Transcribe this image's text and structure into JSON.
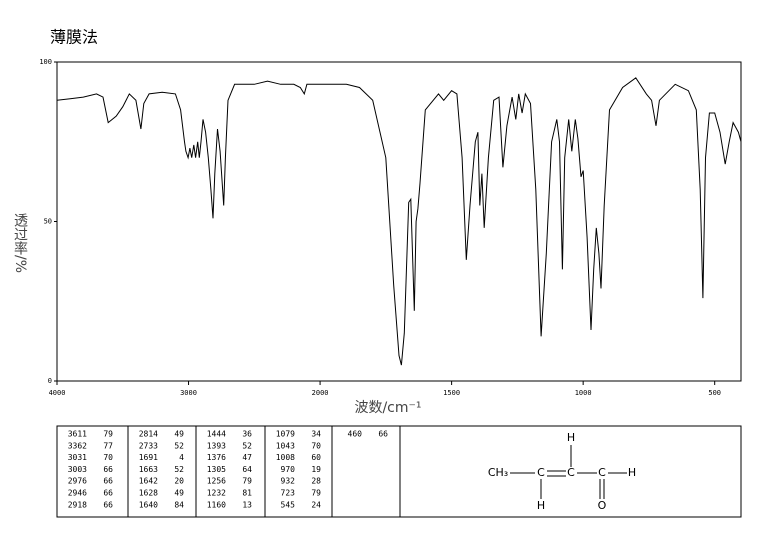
{
  "chart_data": {
    "type": "line",
    "title": "薄膜法",
    "x_label": "波数/cm⁻¹",
    "y_label": "透过率/%",
    "xlim": [
      4000,
      400
    ],
    "xbreak": 2000,
    "xticks": [
      4000,
      3000,
      2000,
      1500,
      1000,
      500
    ],
    "ylim": [
      0,
      100
    ],
    "yticks": [
      0,
      50,
      100
    ],
    "color": "#000000",
    "x": [
      4000,
      3900,
      3800,
      3700,
      3650,
      3611,
      3550,
      3500,
      3450,
      3400,
      3362,
      3340,
      3300,
      3200,
      3100,
      3060,
      3031,
      3020,
      3003,
      2990,
      2976,
      2960,
      2946,
      2930,
      2918,
      2905,
      2890,
      2870,
      2850,
      2830,
      2814,
      2800,
      2780,
      2760,
      2733,
      2720,
      2700,
      2650,
      2500,
      2400,
      2300,
      2200,
      2150,
      2120,
      2100,
      2000,
      1900,
      1850,
      1800,
      1750,
      1720,
      1700,
      1691,
      1680,
      1663,
      1655,
      1642,
      1635,
      1628,
      1620,
      1600,
      1550,
      1530,
      1500,
      1480,
      1460,
      1444,
      1430,
      1410,
      1400,
      1393,
      1385,
      1376,
      1360,
      1340,
      1320,
      1305,
      1290,
      1270,
      1256,
      1245,
      1232,
      1220,
      1200,
      1180,
      1160,
      1140,
      1120,
      1100,
      1090,
      1079,
      1070,
      1055,
      1043,
      1030,
      1020,
      1008,
      1000,
      985,
      970,
      960,
      950,
      940,
      932,
      920,
      900,
      850,
      800,
      760,
      740,
      723,
      710,
      650,
      600,
      570,
      555,
      545,
      535,
      520,
      500,
      480,
      460,
      445,
      430,
      410,
      400
    ],
    "values": [
      88,
      88.5,
      89,
      90,
      89,
      81,
      83,
      86,
      90,
      88,
      79,
      87,
      90,
      90.5,
      90,
      85,
      75,
      72,
      70,
      73,
      70,
      74,
      70,
      75,
      70,
      75,
      82,
      78,
      70,
      60,
      51,
      65,
      79,
      72,
      55,
      70,
      88,
      93,
      93,
      94,
      93,
      93,
      92,
      90,
      93,
      93,
      93,
      92,
      88,
      70,
      30,
      8,
      5,
      15,
      56,
      57,
      22,
      50,
      54,
      62,
      85,
      90,
      88,
      91,
      90,
      70,
      38,
      55,
      75,
      78,
      55,
      65,
      48,
      70,
      88,
      89,
      67,
      80,
      89,
      82,
      90,
      84,
      90,
      87,
      60,
      14,
      40,
      75,
      82,
      75,
      35,
      70,
      82,
      72,
      82,
      76,
      64,
      66,
      45,
      16,
      35,
      48,
      40,
      29,
      55,
      85,
      92,
      95,
      90,
      88,
      80,
      88,
      93,
      91,
      85,
      60,
      26,
      70,
      84,
      84,
      78,
      68,
      75,
      81,
      78,
      75
    ]
  },
  "peak_table": {
    "columns": [
      [
        [
          3611,
          79
        ],
        [
          3362,
          77
        ],
        [
          3031,
          70
        ],
        [
          3003,
          66
        ],
        [
          2976,
          66
        ],
        [
          2946,
          66
        ],
        [
          2918,
          66
        ]
      ],
      [
        [
          2814,
          49
        ],
        [
          2733,
          52
        ],
        [
          1691,
          4
        ],
        [
          1663,
          52
        ],
        [
          1642,
          20
        ],
        [
          1628,
          49
        ],
        [
          1640,
          84
        ]
      ],
      [
        [
          1444,
          36
        ],
        [
          1393,
          52
        ],
        [
          1376,
          47
        ],
        [
          1305,
          64
        ],
        [
          1256,
          79
        ],
        [
          1232,
          81
        ],
        [
          1160,
          13
        ]
      ],
      [
        [
          1079,
          34
        ],
        [
          1043,
          70
        ],
        [
          1008,
          60
        ],
        [
          970,
          19
        ],
        [
          932,
          28
        ],
        [
          723,
          79
        ],
        [
          545,
          24
        ]
      ],
      [
        [
          460,
          66
        ]
      ]
    ]
  },
  "structure": {
    "atoms": [
      "CH₃",
      "C",
      "C",
      "C",
      "H",
      "H",
      "H",
      "O"
    ]
  }
}
